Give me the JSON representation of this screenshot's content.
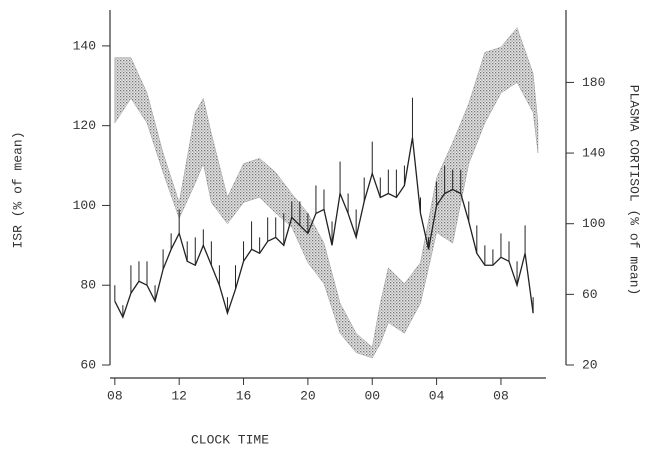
{
  "chart_data": {
    "type": "line",
    "xlabel": "CLOCK TIME",
    "ylabel": "ISR (% of mean)",
    "y2label": "PLASMA CORTISOL (% of mean)",
    "xlim": [
      -0.3,
      26.8
    ],
    "xticks": [
      {
        "value": 0,
        "label": "08"
      },
      {
        "value": 4,
        "label": "12"
      },
      {
        "value": 8,
        "label": "16"
      },
      {
        "value": 12,
        "label": "20"
      },
      {
        "value": 16,
        "label": "00"
      },
      {
        "value": 20,
        "label": "04"
      },
      {
        "value": 24,
        "label": "08"
      }
    ],
    "ylim": [
      60,
      149
    ],
    "yticks": [
      60,
      80,
      100,
      120,
      140
    ],
    "y2lim": [
      20,
      221
    ],
    "y2ticks": [
      20,
      60,
      100,
      140,
      180
    ],
    "x": [
      0,
      0.5,
      1,
      1.5,
      2,
      2.5,
      3,
      3.5,
      4,
      4.5,
      5,
      5.5,
      6,
      6.5,
      7,
      7.5,
      8,
      8.5,
      9,
      9.5,
      10,
      10.5,
      11,
      11.5,
      12,
      12.5,
      13,
      13.5,
      14,
      14.5,
      15,
      15.5,
      16,
      16.5,
      17,
      17.5,
      18,
      18.5,
      19,
      19.5,
      20,
      20.5,
      21,
      21.5,
      22,
      22.5,
      23,
      23.5,
      24,
      24.5,
      25,
      25.5,
      26
    ],
    "series": [
      {
        "color": "#222222",
        "values": [
          76,
          72,
          78,
          81,
          80,
          76,
          84,
          89,
          93,
          86,
          85,
          90,
          85,
          80,
          73,
          79,
          86,
          89,
          88,
          91,
          92,
          90,
          97,
          95,
          93,
          98,
          99,
          90,
          103,
          98,
          92,
          101,
          108,
          102,
          103,
          102,
          105,
          117,
          98,
          89,
          100,
          103,
          104,
          103,
          96,
          88,
          85,
          85,
          87,
          86,
          80,
          88,
          73
        ],
        "errors": [
          4,
          3,
          7,
          5,
          6,
          4,
          5,
          4,
          6,
          5,
          7,
          4,
          6,
          5,
          4,
          6,
          5,
          7,
          4,
          6,
          5,
          8,
          4,
          6,
          5,
          7,
          5,
          6,
          8,
          5,
          7,
          6,
          8,
          5,
          6,
          7,
          5,
          10,
          4,
          3,
          6,
          7,
          5,
          6,
          5,
          7,
          5,
          4,
          6,
          5,
          6,
          7,
          4
        ]
      }
    ],
    "band": {
      "color": "#8a8a8a",
      "axis": "y2",
      "x": [
        0,
        1,
        2,
        3,
        4,
        5,
        5.5,
        6,
        7,
        8,
        9,
        10,
        11,
        12,
        13,
        14,
        15,
        16,
        16.5,
        17,
        18,
        19,
        20,
        21,
        22,
        23,
        24,
        25,
        26,
        26.3
      ],
      "upper": [
        194,
        194,
        174,
        140,
        112,
        163,
        171,
        151,
        115,
        134,
        137,
        129,
        117,
        106,
        89,
        55,
        38,
        30,
        55,
        75,
        66,
        78,
        126,
        146,
        168,
        197,
        200,
        211,
        185,
        157
      ],
      "lower": [
        157,
        171,
        157,
        129,
        103,
        123,
        134,
        112,
        100,
        112,
        115,
        106,
        98,
        78,
        66,
        38,
        27,
        24,
        32,
        44,
        38,
        55,
        95,
        89,
        134,
        157,
        174,
        180,
        163,
        140
      ]
    }
  }
}
